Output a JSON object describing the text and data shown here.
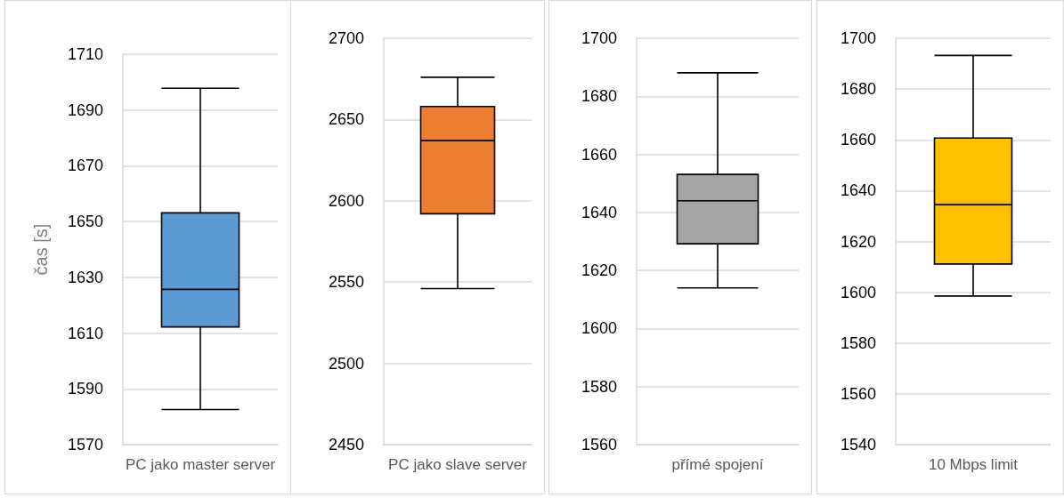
{
  "chart_data": [
    {
      "type": "box",
      "ylabel": "čas [s]",
      "categories": [
        "PC jako master server"
      ],
      "ylim": [
        1570,
        1710
      ],
      "yticks": [
        1570,
        1590,
        1610,
        1630,
        1650,
        1670,
        1690,
        1710
      ],
      "grid": "y",
      "series": [
        {
          "color": "#5b9bd5",
          "boxes": [
            {
              "low": 1582.6,
              "q1": 1612.2,
              "median": 1625.7,
              "q3": 1653.1,
              "high": 1697.8
            }
          ]
        }
      ]
    },
    {
      "type": "box",
      "categories": [
        "PC jako slave server"
      ],
      "ylim": [
        2450,
        2700
      ],
      "yticks": [
        2450,
        2500,
        2550,
        2600,
        2650,
        2700
      ],
      "grid": "y",
      "series": [
        {
          "color": "#ed7d31",
          "boxes": [
            {
              "low": 2546,
              "q1": 2592,
              "median": 2637,
              "q3": 2658,
              "high": 2676
            }
          ]
        }
      ]
    },
    {
      "type": "box",
      "categories": [
        "přímé spojení"
      ],
      "ylim": [
        1560,
        1700
      ],
      "yticks": [
        1560,
        1580,
        1600,
        1620,
        1640,
        1660,
        1680,
        1700
      ],
      "grid": "y",
      "series": [
        {
          "color": "#a5a5a5",
          "boxes": [
            {
              "low": 1614,
              "q1": 1629.2,
              "median": 1644,
              "q3": 1653.1,
              "high": 1688.1
            }
          ]
        }
      ]
    },
    {
      "type": "box",
      "categories": [
        "10 Mbps limit"
      ],
      "ylim": [
        1540,
        1700
      ],
      "yticks": [
        1540,
        1560,
        1580,
        1600,
        1620,
        1640,
        1660,
        1680,
        1700
      ],
      "grid": "y",
      "series": [
        {
          "color": "#ffc000",
          "boxes": [
            {
              "low": 1598.5,
              "q1": 1611.1,
              "median": 1634.5,
              "q3": 1660.7,
              "high": 1693.2
            }
          ]
        }
      ]
    }
  ]
}
